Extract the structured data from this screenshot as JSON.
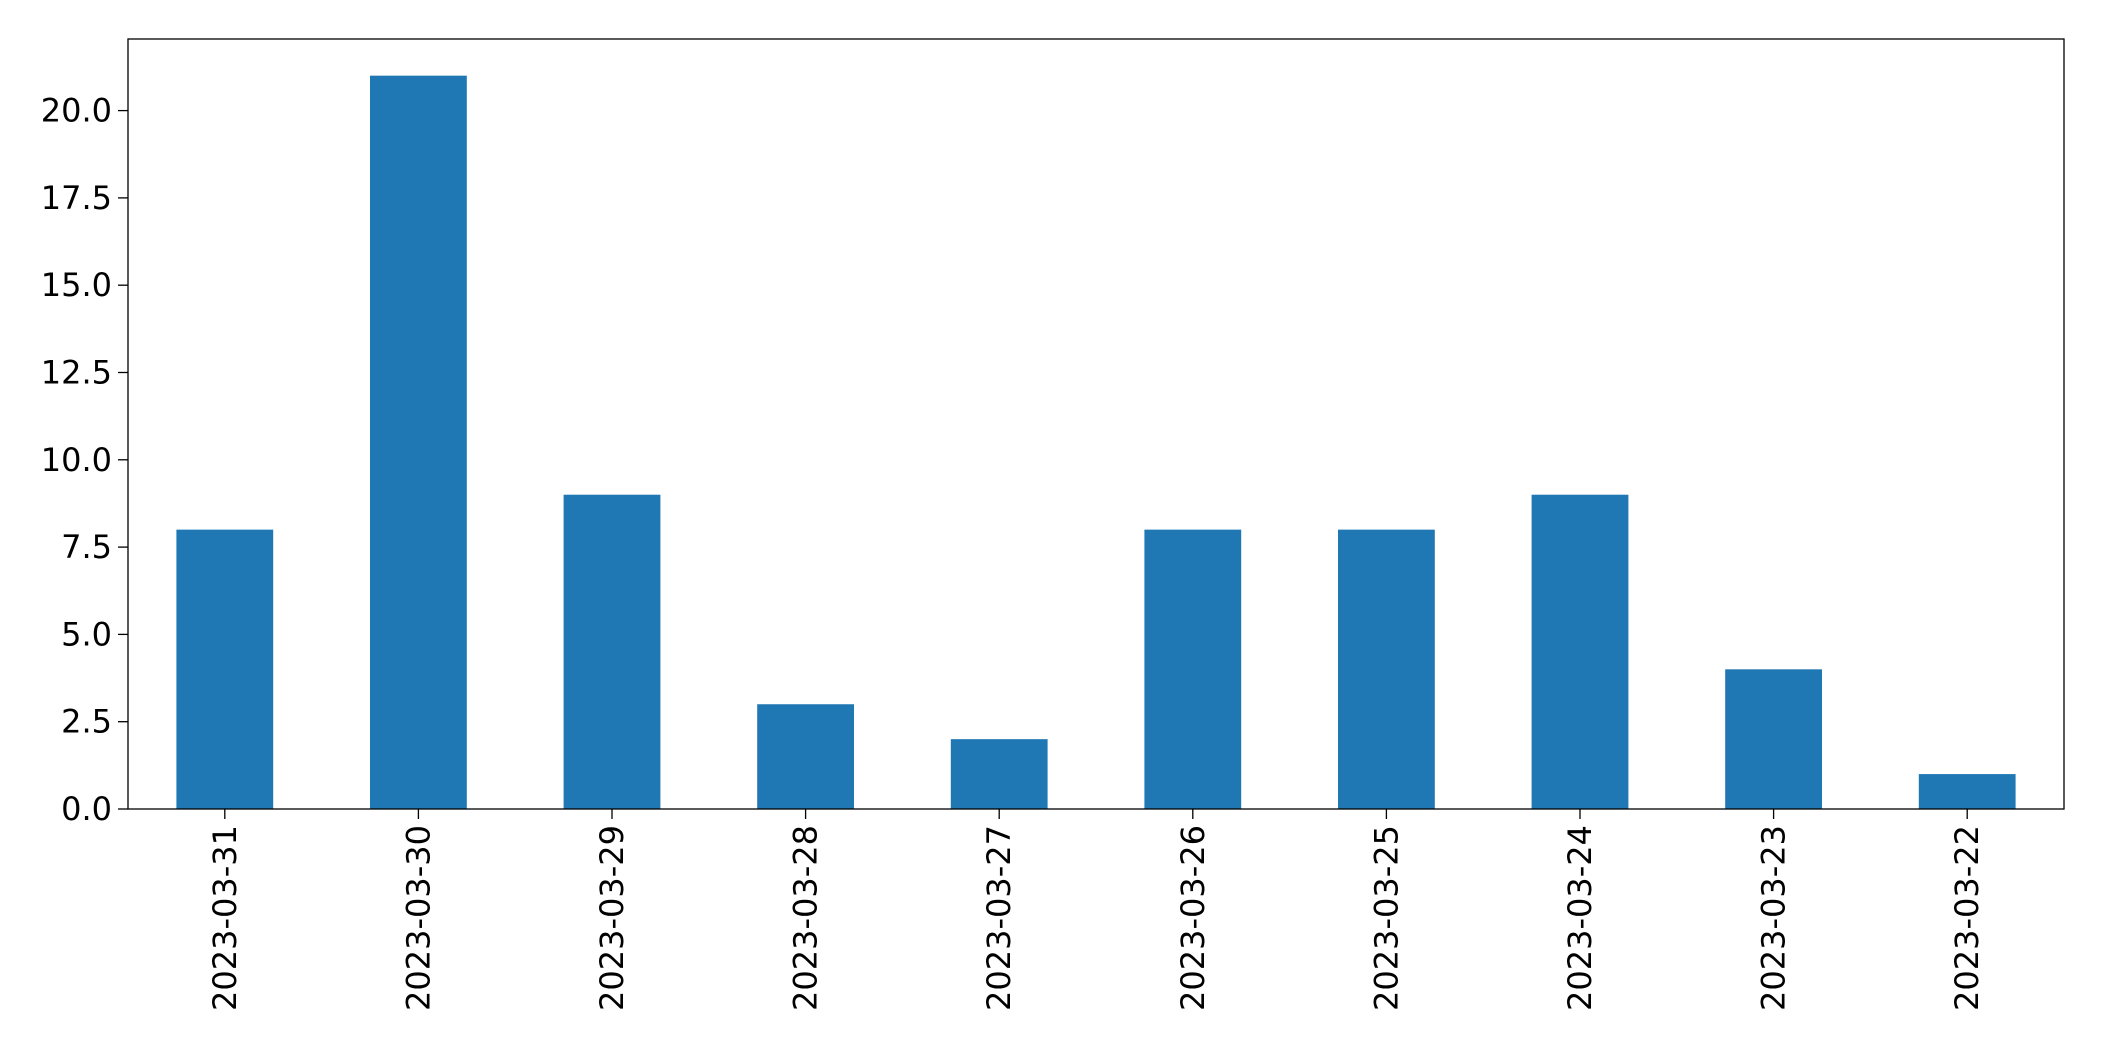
{
  "chart_data": {
    "type": "bar",
    "categories": [
      "2023-03-31",
      "2023-03-30",
      "2023-03-29",
      "2023-03-28",
      "2023-03-27",
      "2023-03-26",
      "2023-03-25",
      "2023-03-24",
      "2023-03-23",
      "2023-03-22"
    ],
    "values": [
      8,
      21,
      9,
      3,
      2,
      8,
      8,
      9,
      4,
      1
    ],
    "color": "#1f77b4",
    "ylim": [
      0,
      22.05
    ],
    "yticks": [
      {
        "value": 0,
        "label": "0.0"
      },
      2.5,
      {
        "value": 5,
        "label": "5.0"
      },
      7.5,
      {
        "value": 10,
        "label": "10.0"
      },
      12.5,
      {
        "value": 15,
        "label": "15.0"
      },
      17.5,
      {
        "value": 20,
        "label": "20.0"
      }
    ],
    "grid": false
  }
}
